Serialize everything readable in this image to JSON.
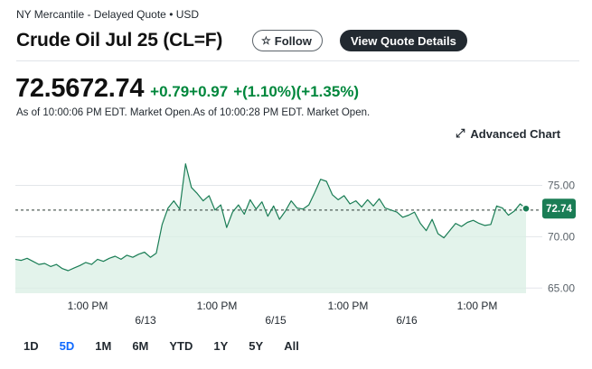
{
  "header": {
    "exchange": "NY Mercantile - Delayed Quote • USD",
    "title": "Crude Oil Jul 25 (CL=F)",
    "follow_label": "Follow",
    "view_details_label": "View Quote Details"
  },
  "quote": {
    "price": "72.5672.74",
    "change": "+0.79+0.97",
    "change_pct": "+(1.10%)(+1.35%)",
    "as_of": "As of 10:00:06 PM EDT. Market Open.As of 10:00:28 PM EDT. Market Open."
  },
  "advanced_chart_label": "Advanced Chart",
  "range_tabs": [
    "1D",
    "5D",
    "1M",
    "6M",
    "YTD",
    "1Y",
    "5Y",
    "All"
  ],
  "range_active": "5D",
  "colors": {
    "line": "#1a7d55",
    "fill": "#d9efe4",
    "up": "#00873c",
    "badge_bg": "#1a7d55",
    "active_tab": "#0f69ff"
  },
  "chart_data": {
    "type": "area",
    "series": [
      {
        "values": [
          67.8,
          67.7,
          67.9,
          67.6,
          67.3,
          67.4,
          67.1,
          67.3,
          66.9,
          66.7,
          66.95,
          67.2,
          67.5,
          67.3,
          67.8,
          67.6,
          67.9,
          68.1,
          67.8,
          68.2,
          68.0,
          68.3,
          68.5,
          68.0,
          68.4,
          71.2,
          72.8,
          73.5,
          72.7,
          77.1,
          74.8,
          74.2,
          73.5,
          74.0,
          72.6,
          73.1,
          70.9,
          72.4,
          73.1,
          72.2,
          73.6,
          72.7,
          73.4,
          72.0,
          73.0,
          71.7,
          72.5,
          73.5,
          72.8,
          72.7,
          73.1,
          74.3,
          75.6,
          75.4,
          74.1,
          73.6,
          74.0,
          73.2,
          73.5,
          72.9,
          73.6,
          73.0,
          73.7,
          72.8,
          72.6,
          72.4,
          71.9,
          72.1,
          72.4,
          71.3,
          70.6,
          71.7,
          70.3,
          69.9,
          70.6,
          71.3,
          71.0,
          71.4,
          71.6,
          71.3,
          71.1,
          71.2,
          73.0,
          72.8,
          72.1,
          72.5,
          73.2,
          72.74
        ]
      }
    ],
    "x_ticks": [
      {
        "label": "1:00 PM",
        "row": 1
      },
      {
        "label": "6/13",
        "row": 2
      },
      {
        "label": "1:00 PM",
        "row": 1
      },
      {
        "label": "6/15",
        "row": 2
      },
      {
        "label": "1:00 PM",
        "row": 1
      },
      {
        "label": "6/16",
        "row": 2
      },
      {
        "label": "1:00 PM",
        "row": 1
      }
    ],
    "y_ticks": [
      75,
      70,
      65
    ],
    "y_tick_labels": [
      "75.00",
      "70.00",
      "65.00"
    ],
    "ylim": [
      64.5,
      79
    ],
    "previous_close": 72.6,
    "last_label": "72.74",
    "grid": true
  }
}
